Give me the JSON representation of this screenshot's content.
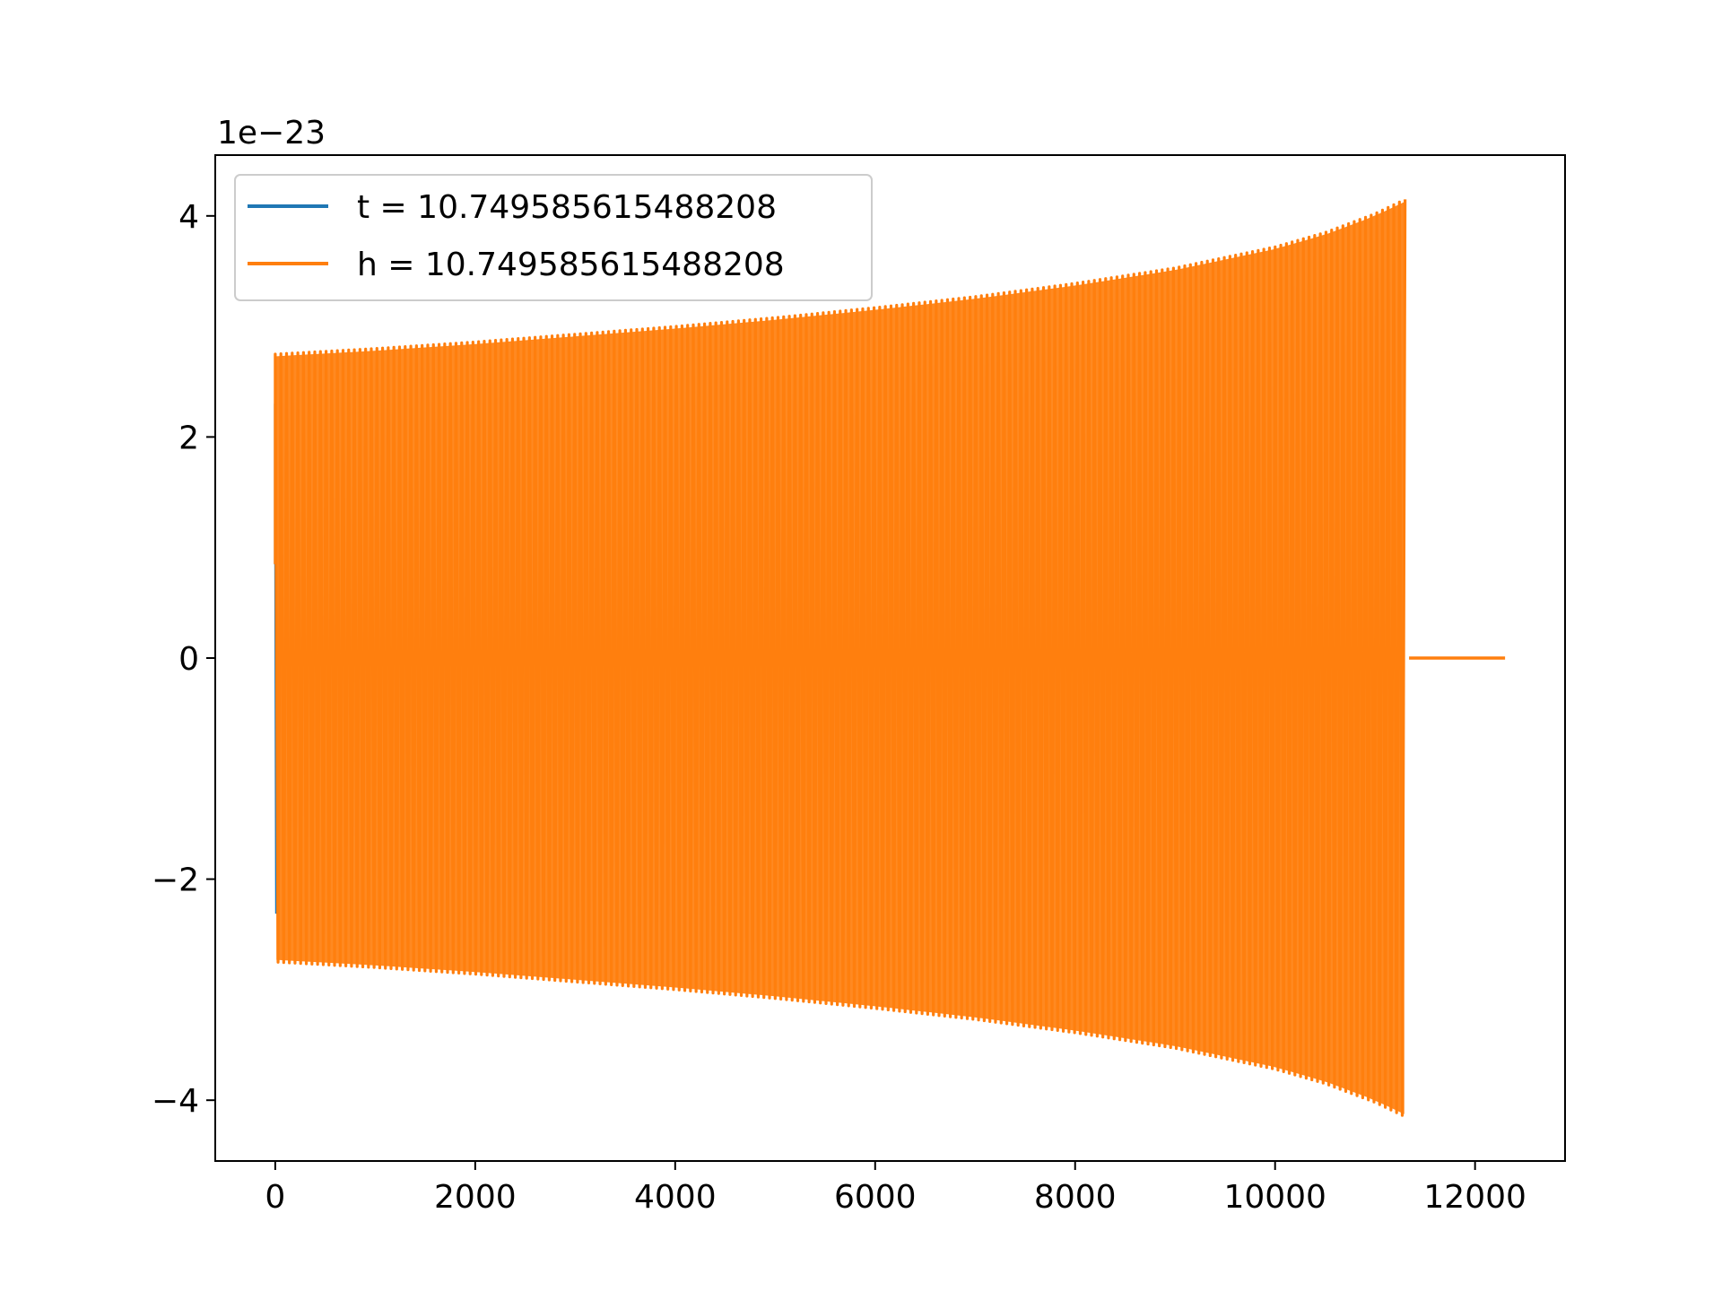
{
  "chart_data": {
    "type": "line",
    "title": "",
    "xlabel": "",
    "ylabel": "",
    "y_offset_label": "1e−23",
    "xlim": [
      -600,
      12900
    ],
    "ylim": [
      -4.55,
      4.55
    ],
    "x_ticks": [
      0,
      2000,
      4000,
      6000,
      8000,
      10000,
      12000
    ],
    "x_tick_labels": [
      "0",
      "2000",
      "4000",
      "6000",
      "8000",
      "10000",
      "12000"
    ],
    "y_ticks": [
      -4,
      -2,
      0,
      2,
      4
    ],
    "y_tick_labels": [
      "−4",
      "−2",
      "0",
      "2",
      "4"
    ],
    "grid": false,
    "legend_position": "upper-left",
    "series": [
      {
        "name": "t = 10.749585615488208",
        "color": "#1f77b4",
        "kind": "short-burst",
        "x": [
          0,
          25
        ],
        "envelope_max": [
          2.3,
          2.3
        ],
        "envelope_min": [
          -2.3,
          -2.3
        ],
        "start_value": 0.85
      },
      {
        "name": "h = 10.749585615488208",
        "color": "#ff7f0e",
        "kind": "chirp",
        "x": [
          0,
          1000,
          2000,
          3000,
          4000,
          5000,
          6000,
          7000,
          8000,
          9000,
          10000,
          10500,
          11000,
          11300
        ],
        "envelope_max": [
          2.75,
          2.8,
          2.86,
          2.93,
          3.0,
          3.08,
          3.17,
          3.27,
          3.39,
          3.53,
          3.72,
          3.85,
          4.02,
          4.15
        ],
        "envelope_min": [
          -2.75,
          -2.8,
          -2.86,
          -2.93,
          -3.0,
          -3.08,
          -3.17,
          -3.27,
          -3.39,
          -3.53,
          -3.72,
          -3.85,
          -4.02,
          -4.15
        ],
        "start_value": 0.85,
        "tail": {
          "x": [
            11340,
            12300
          ],
          "y": [
            0,
            0
          ]
        },
        "cycles_visible": 200
      }
    ]
  }
}
